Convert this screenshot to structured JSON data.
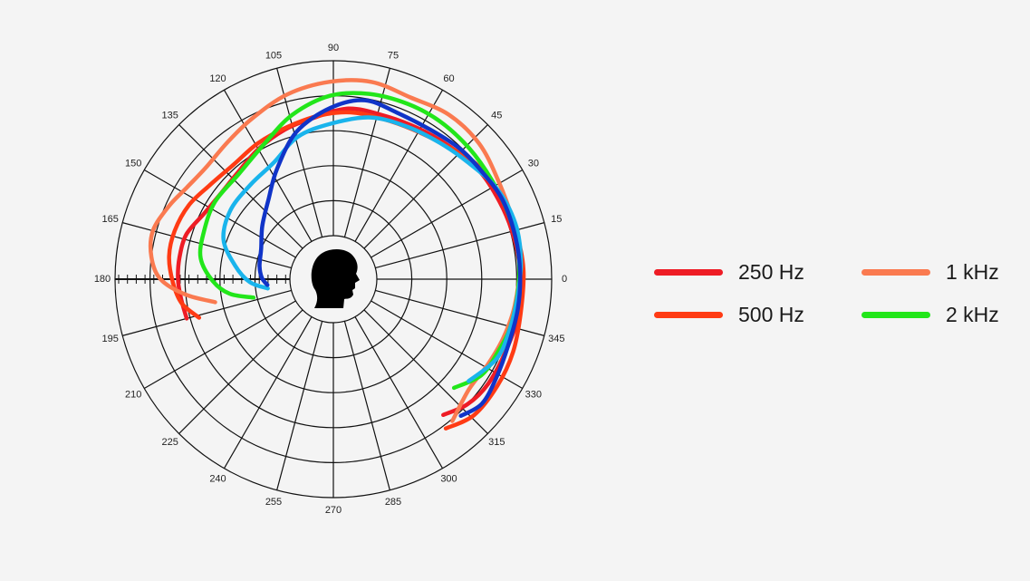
{
  "chart_data": {
    "type": "polar",
    "angle_ticks": [
      "0",
      "15",
      "30",
      "45",
      "60",
      "75",
      "90",
      "105",
      "120",
      "135",
      "150",
      "165",
      "180",
      "195",
      "210",
      "225",
      "240",
      "255",
      "270",
      "285",
      "300",
      "315",
      "330",
      "345"
    ],
    "r_range": [
      0,
      1
    ],
    "r_rings": [
      0.2,
      0.4,
      0.6,
      0.8,
      1.0
    ],
    "grid": true,
    "legend": "right",
    "head_icon": "head-silhouette-icon",
    "series": [
      {
        "name": "250 Hz",
        "color": "#ee1c25",
        "points": [
          [
            195,
            0.62
          ],
          [
            187,
            0.63
          ],
          [
            180,
            0.64
          ],
          [
            172,
            0.64
          ],
          [
            163,
            0.63
          ],
          [
            153,
            0.58
          ],
          [
            143,
            0.56
          ],
          [
            132,
            0.57
          ],
          [
            120,
            0.61
          ],
          [
            108,
            0.65
          ],
          [
            97,
            0.68
          ],
          [
            85,
            0.73
          ],
          [
            73,
            0.73
          ],
          [
            61,
            0.74
          ],
          [
            49,
            0.76
          ],
          [
            37,
            0.79
          ],
          [
            25,
            0.8
          ],
          [
            14,
            0.81
          ],
          [
            3,
            0.82
          ],
          [
            350,
            0.83
          ],
          [
            338,
            0.82
          ],
          [
            326,
            0.82
          ],
          [
            317,
            0.8
          ],
          [
            309,
            0.75
          ]
        ]
      },
      {
        "name": "500 Hz",
        "color": "#ff3b14",
        "points": [
          [
            196,
            0.55
          ],
          [
            189,
            0.63
          ],
          [
            181,
            0.67
          ],
          [
            172,
            0.7
          ],
          [
            163,
            0.7
          ],
          [
            153,
            0.68
          ],
          [
            143,
            0.64
          ],
          [
            131,
            0.62
          ],
          [
            119,
            0.64
          ],
          [
            107,
            0.66
          ],
          [
            95,
            0.69
          ],
          [
            84,
            0.71
          ],
          [
            73,
            0.71
          ],
          [
            62,
            0.72
          ],
          [
            50,
            0.75
          ],
          [
            39,
            0.8
          ],
          [
            27,
            0.82
          ],
          [
            15,
            0.83
          ],
          [
            3,
            0.84
          ],
          [
            350,
            0.84
          ],
          [
            338,
            0.86
          ],
          [
            327,
            0.87
          ],
          [
            316,
            0.87
          ],
          [
            307,
            0.82
          ]
        ]
      },
      {
        "name": "1 kHz",
        "color": "#fa7a50",
        "points": [
          [
            191,
            0.44
          ],
          [
            186,
            0.6
          ],
          [
            180,
            0.74
          ],
          [
            173,
            0.8
          ],
          [
            165,
            0.82
          ],
          [
            156,
            0.78
          ],
          [
            148,
            0.74
          ],
          [
            139,
            0.72
          ],
          [
            128,
            0.74
          ],
          [
            117,
            0.78
          ],
          [
            104,
            0.84
          ],
          [
            91,
            0.88
          ],
          [
            79,
            0.9
          ],
          [
            67,
            0.88
          ],
          [
            55,
            0.9
          ],
          [
            43,
            0.89
          ],
          [
            31,
            0.85
          ],
          [
            18,
            0.83
          ],
          [
            5,
            0.82
          ],
          [
            352,
            0.8
          ],
          [
            341,
            0.78
          ],
          [
            331,
            0.76
          ],
          [
            321,
            0.75
          ],
          [
            310,
            0.81
          ]
        ]
      },
      {
        "name": "2 kHz",
        "color": "#22e61a",
        "points": [
          [
            193,
            0.22
          ],
          [
            188,
            0.35
          ],
          [
            181,
            0.44
          ],
          [
            171,
            0.52
          ],
          [
            160,
            0.54
          ],
          [
            147,
            0.56
          ],
          [
            132,
            0.56
          ],
          [
            117,
            0.62
          ],
          [
            104,
            0.72
          ],
          [
            91,
            0.8
          ],
          [
            79,
            0.83
          ],
          [
            67,
            0.84
          ],
          [
            56,
            0.84
          ],
          [
            44,
            0.83
          ],
          [
            32,
            0.82
          ],
          [
            20,
            0.82
          ],
          [
            8,
            0.82
          ],
          [
            357,
            0.81
          ],
          [
            345,
            0.8
          ],
          [
            336,
            0.78
          ],
          [
            327,
            0.76
          ],
          [
            318,
            0.68
          ]
        ]
      },
      {
        "color": "#19b4ec",
        "points": [
          [
            188,
            0.13
          ],
          [
            182,
            0.23
          ],
          [
            172,
            0.32
          ],
          [
            160,
            0.42
          ],
          [
            146,
            0.46
          ],
          [
            131,
            0.47
          ],
          [
            117,
            0.5
          ],
          [
            104,
            0.59
          ],
          [
            91,
            0.64
          ],
          [
            77,
            0.7
          ],
          [
            64,
            0.72
          ],
          [
            52,
            0.74
          ],
          [
            41,
            0.77
          ],
          [
            29,
            0.82
          ],
          [
            17,
            0.84
          ],
          [
            6,
            0.83
          ],
          [
            355,
            0.81
          ],
          [
            344,
            0.8
          ],
          [
            334,
            0.79
          ],
          [
            323,
            0.72
          ]
        ]
      },
      {
        "color": "#1034c8",
        "points": [
          [
            185,
            0.13
          ],
          [
            179,
            0.16
          ],
          [
            170,
            0.18
          ],
          [
            157,
            0.2
          ],
          [
            143,
            0.26
          ],
          [
            129,
            0.34
          ],
          [
            117,
            0.46
          ],
          [
            104,
            0.62
          ],
          [
            91,
            0.73
          ],
          [
            80,
            0.79
          ],
          [
            69,
            0.77
          ],
          [
            57,
            0.77
          ],
          [
            46,
            0.79
          ],
          [
            36,
            0.8
          ],
          [
            25,
            0.82
          ],
          [
            13,
            0.82
          ],
          [
            2,
            0.82
          ],
          [
            351,
            0.82
          ],
          [
            340,
            0.82
          ],
          [
            329,
            0.84
          ],
          [
            320,
            0.86
          ],
          [
            313,
            0.82
          ]
        ]
      }
    ]
  }
}
